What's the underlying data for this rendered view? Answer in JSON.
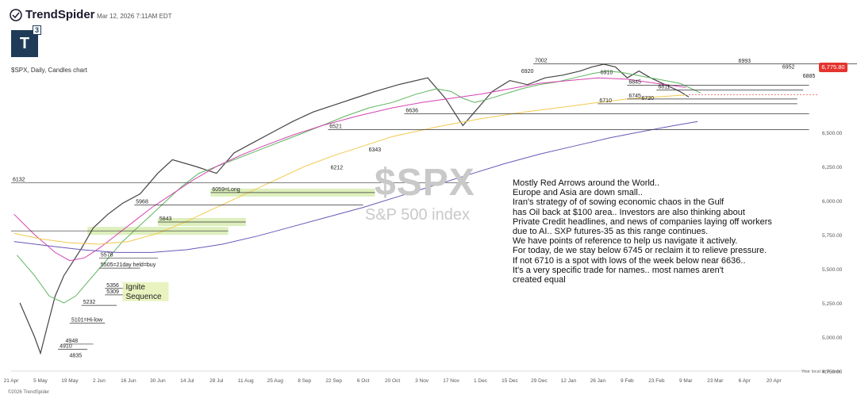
{
  "header": {
    "brand": "TrendSpider",
    "timestamp": "Mar 12, 2026 7:11AM EDT",
    "logo_text": "T",
    "logo_sup": "3",
    "symbol_line": "$SPX, Daily, Candles chart"
  },
  "watermark": {
    "symbol": "$SPX",
    "name": "S&P 500 index"
  },
  "price_badge": "6,775.80",
  "footer": {
    "copyright": "©2026 TrendSpider",
    "timezone": "Your local time zone"
  },
  "commentary": [
    "Mostly Red Arrows around the World..",
    "Europe and Asia are down small..",
    "Iran's strategy of of sowing economic chaos in the Gulf",
    "has Oil back at $100 area.. Investors are also thinking about",
    "Private Credit headlines, and news of companies laying off workers",
    "due to AI.. SXP futures-35 as this range continues.",
    "We have points of reference to help us navigate it actively.",
    "For today, de we stay below 6745 or reclaim it to relieve pressure.",
    "If not 6710 is a spot with lows of the week below near 6636..",
    "It's a very specific trade for names.. most names aren't",
    "created equal"
  ],
  "chart_data": {
    "type": "line",
    "title": "$SPX",
    "subtitle": "S&P 500 index",
    "xlabel": "",
    "ylabel": "",
    "ylim": [
      4750,
      7250
    ],
    "y_ticks": [
      "4,750.00",
      "5,000.00",
      "5,250.00",
      "5,500.00",
      "5,750.00",
      "6,000.00",
      "6,250.00",
      "6,500.00"
    ],
    "y_tick_values": [
      4750,
      5000,
      5250,
      5500,
      5750,
      6000,
      6250,
      6500
    ],
    "x_ticks": [
      "21 Apr",
      "5 May",
      "19 May",
      "2 Jun",
      "16 Jun",
      "30 Jun",
      "14 Jul",
      "28 Jul",
      "11 Aug",
      "25 Aug",
      "8 Sep",
      "22 Sep",
      "6 Oct",
      "20 Oct",
      "3 Nov",
      "17 Nov",
      "1 Dec",
      "15 Dec",
      "29 Dec",
      "12 Jan",
      "26 Jan",
      "9 Feb",
      "23 Feb",
      "9 Mar",
      "23 Mar",
      "6 Apr",
      "20 Apr"
    ],
    "x_tick_index": [
      0,
      1,
      2,
      3,
      4,
      5,
      6,
      7,
      8,
      9,
      10,
      11,
      12,
      13,
      14,
      15,
      16,
      17,
      18,
      19,
      20,
      21,
      22,
      23,
      24,
      25,
      26
    ],
    "grid": false,
    "series": [
      {
        "values": [
          5250,
          5000,
          4880,
          5050,
          5300,
          5450,
          5550,
          5650,
          5800,
          5900,
          5980,
          6050,
          6200,
          6300,
          6250,
          6200,
          6350,
          6420,
          6500,
          6580,
          6650,
          6700,
          6750,
          6800,
          6850,
          6900,
          6750,
          6650,
          6550,
          6650,
          6800,
          6880,
          6850,
          6900,
          6920,
          6950,
          6980,
          7000,
          6980,
          6900,
          6950,
          6900,
          6850,
          6800,
          6760
        ],
        "x_index": [
          0.3,
          0.8,
          1.0,
          1.2,
          1.5,
          1.8,
          2.1,
          2.4,
          2.8,
          3.3,
          3.8,
          4.4,
          5.0,
          5.5,
          6.3,
          7.0,
          7.6,
          8.2,
          8.9,
          9.6,
          10.3,
          11.0,
          11.7,
          12.4,
          13.2,
          14.2,
          14.8,
          15.1,
          15.4,
          15.8,
          16.4,
          17.0,
          17.6,
          18.2,
          18.8,
          19.4,
          19.8,
          20.2,
          20.6,
          21.0,
          21.4,
          21.8,
          22.3,
          22.8,
          23.1
        ],
        "color": "#444444"
      },
      {
        "values": [
          5600,
          5450,
          5300,
          5250,
          5300,
          5400,
          5500,
          5600,
          5700,
          5800,
          5900,
          6000,
          6100,
          6200,
          6250,
          6300,
          6350,
          6400,
          6450,
          6500,
          6550,
          6620,
          6680,
          6720,
          6780,
          6820,
          6800,
          6750,
          6720,
          6740,
          6780,
          6820,
          6850,
          6870,
          6900,
          6930,
          6950,
          6940,
          6920,
          6900,
          6880,
          6860,
          6820,
          6790
        ],
        "x_index": [
          0.2,
          0.8,
          1.3,
          1.8,
          2.2,
          2.6,
          3.0,
          3.4,
          3.8,
          4.3,
          4.8,
          5.3,
          5.8,
          6.4,
          7.0,
          7.6,
          8.2,
          8.8,
          9.4,
          10.0,
          10.6,
          11.4,
          12.2,
          13.0,
          13.8,
          14.5,
          15.0,
          15.4,
          15.8,
          16.2,
          16.8,
          17.4,
          18.0,
          18.6,
          19.2,
          19.8,
          20.3,
          20.8,
          21.3,
          21.8,
          22.3,
          22.8,
          23.2,
          23.5
        ],
        "color": "#5fb45f"
      },
      {
        "values": [
          5900,
          5750,
          5620,
          5560,
          5580,
          5650,
          5750,
          5850,
          5950,
          6050,
          6150,
          6250,
          6330,
          6400,
          6480,
          6550,
          6620,
          6680,
          6720,
          6750,
          6780,
          6820,
          6860,
          6880,
          6900,
          6890,
          6860,
          6830
        ],
        "x_index": [
          0.1,
          0.8,
          1.5,
          2.0,
          2.5,
          3.0,
          3.6,
          4.2,
          4.8,
          5.5,
          6.2,
          7.0,
          7.8,
          8.6,
          9.6,
          10.6,
          11.8,
          13.0,
          14.0,
          15.0,
          16.0,
          17.0,
          18.0,
          19.0,
          20.0,
          21.0,
          22.0,
          23.0
        ],
        "color": "#d444b0"
      },
      {
        "values": [
          5760,
          5720,
          5690,
          5680,
          5700,
          5760,
          5850,
          5950,
          6050,
          6150,
          6250,
          6330,
          6400,
          6470,
          6540,
          6600,
          6650,
          6690,
          6720,
          6745,
          6760,
          6775
        ],
        "x_index": [
          0.1,
          1.0,
          2.0,
          3.0,
          4.0,
          5.0,
          6.0,
          7.0,
          8.0,
          9.0,
          10.0,
          11.0,
          12.0,
          13.0,
          14.5,
          16.0,
          17.5,
          19.0,
          20.0,
          21.0,
          22.0,
          23.0
        ],
        "color": "#f2c94c"
      },
      {
        "values": [
          5700,
          5670,
          5640,
          5620,
          5620,
          5640,
          5680,
          5740,
          5810,
          5880,
          5950,
          6030,
          6110,
          6190,
          6270,
          6340,
          6400,
          6460,
          6510,
          6550,
          6580
        ],
        "x_index": [
          0.1,
          1.2,
          2.4,
          3.6,
          4.8,
          6.0,
          7.2,
          8.4,
          9.6,
          10.8,
          12.0,
          13.2,
          14.4,
          15.6,
          16.8,
          18.0,
          19.2,
          20.4,
          21.6,
          22.6,
          23.4
        ],
        "color": "#6b56b8"
      }
    ],
    "levels": [
      {
        "value": 6132,
        "label": "6132",
        "x_start": 0.0,
        "x_end": 15.6
      },
      {
        "value": 6059,
        "label": "6059=Long",
        "x_start": 6.8,
        "x_end": 12.4
      },
      {
        "value": 5968,
        "label": "5968",
        "x_start": 4.2,
        "x_end": 12.0
      },
      {
        "value": 5843,
        "label": "5843",
        "x_start": 5.0,
        "x_end": 8.0
      },
      {
        "value": 5778,
        "label": "",
        "x_start": 0.0,
        "x_end": 7.4
      },
      {
        "value": 5578,
        "label": "5578",
        "x_start": 3.0,
        "x_end": 5.0
      },
      {
        "value": 5505,
        "label": "5505=21day held=buy",
        "x_start": 3.0,
        "x_end": 4.4
      },
      {
        "value": 5356,
        "label": "5356",
        "x_start": 3.2,
        "x_end": 4.0
      },
      {
        "value": 5309,
        "label": "5309",
        "x_start": 3.2,
        "x_end": 4.0
      },
      {
        "value": 5232,
        "label": "5232",
        "x_start": 2.4,
        "x_end": 3.6
      },
      {
        "value": 5101,
        "label": "5101=Hi-low",
        "x_start": 2.0,
        "x_end": 3.2
      },
      {
        "value": 4948,
        "label": "4948",
        "x_start": 1.8,
        "x_end": 2.8
      },
      {
        "value": 4910,
        "label": "4910",
        "x_start": 1.6,
        "x_end": 2.6
      },
      {
        "value": 7002,
        "label": "7002",
        "x_start": 17.8,
        "x_end": 29.0
      },
      {
        "value": 6845,
        "label": "6845",
        "x_start": 21.0,
        "x_end": 27.2
      },
      {
        "value": 6811,
        "label": "6811",
        "x_start": 22.0,
        "x_end": 27.0
      },
      {
        "value": 6745,
        "label": "6745",
        "x_start": 21.0,
        "x_end": 26.8
      },
      {
        "value": 6710,
        "label": "6710",
        "x_start": 20.0,
        "x_end": 26.8
      },
      {
        "value": 6636,
        "label": "6636",
        "x_start": 13.4,
        "x_end": 27.2
      },
      {
        "value": 6521,
        "label": "6521",
        "x_start": 10.8,
        "x_end": 27.2
      }
    ],
    "annotations": [
      {
        "text": "4835",
        "x_index": 2.2,
        "value": 4835
      },
      {
        "text": "6212",
        "x_index": 11.1,
        "value": 6212
      },
      {
        "text": "6343",
        "x_index": 12.4,
        "value": 6343
      },
      {
        "text": "6920",
        "x_index": 17.6,
        "value": 6920
      },
      {
        "text": "6910",
        "x_index": 20.3,
        "value": 6910
      },
      {
        "text": "6720",
        "x_index": 21.7,
        "value": 6720
      },
      {
        "text": "6993",
        "x_index": 25.0,
        "value": 6993
      },
      {
        "text": "6952",
        "x_index": 26.5,
        "value": 6952
      },
      {
        "text": "6885",
        "x_index": 27.2,
        "value": 6885
      }
    ],
    "ignite": {
      "line1": "Ignite",
      "line2": "Sequence"
    },
    "last_value": 6775.8
  }
}
